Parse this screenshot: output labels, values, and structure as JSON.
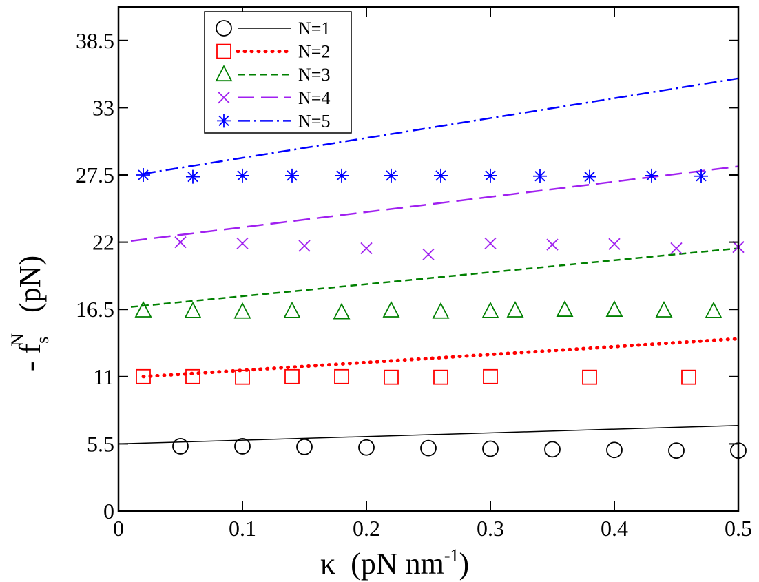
{
  "chart_data": {
    "type": "scatter",
    "title": "",
    "xlabel": {
      "symbol": "κ",
      "unit_text": "(pN nm",
      "unit_sup": "-1",
      "unit_close": ")"
    },
    "ylabel": {
      "prefix": "- f",
      "sub": "s",
      "sup": "N",
      "unit": "(pN)"
    },
    "xlim": [
      0,
      0.5
    ],
    "ylim": [
      0,
      41.25
    ],
    "xticks": [
      0,
      0.1,
      0.2,
      0.3,
      0.4,
      0.5
    ],
    "xtick_labels": [
      "0",
      "0.1",
      "0.2",
      "0.3",
      "0.4",
      "0.5"
    ],
    "yticks": [
      0,
      5.5,
      11,
      16.5,
      22,
      27.5,
      33,
      38.5
    ],
    "ytick_labels": [
      "0",
      "5.5",
      "11",
      "16.5",
      "22",
      "27.5",
      "33",
      "38.5"
    ],
    "legend_position": "top-left",
    "series": [
      {
        "name": "N=1",
        "color": "#000000",
        "marker": "circle",
        "dash": "",
        "points": [
          [
            0.05,
            5.3
          ],
          [
            0.1,
            5.3
          ],
          [
            0.15,
            5.25
          ],
          [
            0.2,
            5.2
          ],
          [
            0.25,
            5.15
          ],
          [
            0.3,
            5.1
          ],
          [
            0.35,
            5.05
          ],
          [
            0.4,
            5.0
          ],
          [
            0.45,
            4.95
          ],
          [
            0.5,
            4.95
          ]
        ],
        "line": [
          [
            0.0,
            5.5
          ],
          [
            0.5,
            7.0
          ]
        ]
      },
      {
        "name": "N=2",
        "color": "#ff0000",
        "marker": "square",
        "dash": "1,9",
        "points": [
          [
            0.02,
            11.0
          ],
          [
            0.06,
            11.0
          ],
          [
            0.1,
            10.95
          ],
          [
            0.14,
            11.0
          ],
          [
            0.18,
            11.0
          ],
          [
            0.22,
            10.95
          ],
          [
            0.26,
            10.95
          ],
          [
            0.3,
            11.0
          ],
          [
            0.38,
            10.95
          ],
          [
            0.46,
            10.95
          ]
        ],
        "line": [
          [
            0.02,
            11.0
          ],
          [
            0.5,
            14.1
          ]
        ]
      },
      {
        "name": "N=3",
        "color": "#008000",
        "marker": "triangle",
        "dash": "10,6",
        "points": [
          [
            0.02,
            16.4
          ],
          [
            0.06,
            16.35
          ],
          [
            0.1,
            16.3
          ],
          [
            0.14,
            16.35
          ],
          [
            0.18,
            16.25
          ],
          [
            0.22,
            16.4
          ],
          [
            0.26,
            16.3
          ],
          [
            0.3,
            16.35
          ],
          [
            0.32,
            16.4
          ],
          [
            0.36,
            16.45
          ],
          [
            0.4,
            16.45
          ],
          [
            0.44,
            16.4
          ],
          [
            0.48,
            16.35
          ]
        ],
        "line": [
          [
            0.01,
            16.7
          ],
          [
            0.5,
            21.5
          ]
        ]
      },
      {
        "name": "N=4",
        "color": "#a020f0",
        "marker": "x",
        "dash": "24,10",
        "points": [
          [
            0.05,
            22.0
          ],
          [
            0.1,
            21.9
          ],
          [
            0.15,
            21.7
          ],
          [
            0.2,
            21.5
          ],
          [
            0.25,
            21.0
          ],
          [
            0.3,
            21.9
          ],
          [
            0.35,
            21.8
          ],
          [
            0.4,
            21.85
          ],
          [
            0.45,
            21.5
          ],
          [
            0.5,
            21.6
          ]
        ],
        "line": [
          [
            0.01,
            22.1
          ],
          [
            0.5,
            28.2
          ]
        ]
      },
      {
        "name": "N=5",
        "color": "#0000ff",
        "marker": "asterisk",
        "dash": "18,6,3,6",
        "points": [
          [
            0.02,
            27.5
          ],
          [
            0.06,
            27.35
          ],
          [
            0.1,
            27.45
          ],
          [
            0.14,
            27.45
          ],
          [
            0.18,
            27.45
          ],
          [
            0.22,
            27.45
          ],
          [
            0.26,
            27.45
          ],
          [
            0.3,
            27.45
          ],
          [
            0.34,
            27.4
          ],
          [
            0.38,
            27.35
          ],
          [
            0.43,
            27.45
          ],
          [
            0.47,
            27.4
          ]
        ],
        "line": [
          [
            0.02,
            27.6
          ],
          [
            0.5,
            35.4
          ]
        ]
      }
    ]
  }
}
